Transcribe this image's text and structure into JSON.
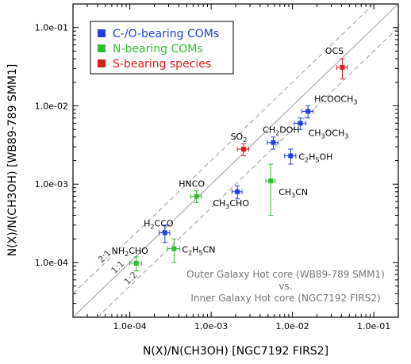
{
  "chart_data": {
    "type": "scatter",
    "title": "",
    "xlabel": "N(X)/N(CH3OH) [NGC7192 FIRS2]",
    "ylabel": "N(X)/N(CH3OH) [WB89-789 SMM1]",
    "xscale": "log",
    "yscale": "log",
    "xlim": [
      2e-05,
      0.2
    ],
    "ylim": [
      2e-05,
      0.2
    ],
    "xticks": [
      "1.0e-04",
      "1.0e-03",
      "1.0e-02",
      "1.0e-01"
    ],
    "yticks": [
      "1.0e-04",
      "1.0e-03",
      "1.0e-02",
      "1.0e-01"
    ],
    "grid": false,
    "legend_position": "top-left",
    "reference_lines": [
      {
        "label": "2:1",
        "ratio": 2,
        "style": "dashed",
        "color": "#aaaaaa"
      },
      {
        "label": "1:1",
        "ratio": 1,
        "style": "solid",
        "color": "#aaaaaa"
      },
      {
        "label": "1:2",
        "ratio": 0.5,
        "style": "dashed",
        "color": "#aaaaaa"
      }
    ],
    "annotation": {
      "line1": "Outer Galaxy Hot core (WB89-789 SMM1)",
      "line2": "vs.",
      "line3": "Inner Galaxy Hot core (NGC7192 FIRS2)"
    },
    "series": [
      {
        "name": "C-/O-bearing COMs",
        "color": "#1f3fe0",
        "points": [
          {
            "label": "H2CCO",
            "x": 0.00027,
            "y": 0.00024,
            "x_err": 4e-05,
            "y_err": 6e-05
          },
          {
            "label": "CH3CHO",
            "x": 0.0021,
            "y": 0.0008,
            "x_err": 0.0003,
            "y_err": 0.00015
          },
          {
            "label": "CH2DOH",
            "x": 0.0058,
            "y": 0.0034,
            "x_err": 0.0009,
            "y_err": 0.0006
          },
          {
            "label": "C2H5OH",
            "x": 0.0095,
            "y": 0.0023,
            "x_err": 0.0015,
            "y_err": 0.0005
          },
          {
            "label": "CH3OCH3",
            "x": 0.0125,
            "y": 0.006,
            "x_err": 0.002,
            "y_err": 0.001
          },
          {
            "label": "HCOOCH3",
            "x": 0.0155,
            "y": 0.0085,
            "x_err": 0.0025,
            "y_err": 0.0015
          }
        ]
      },
      {
        "name": "N-bearing COMs",
        "color": "#33bb33",
        "points": [
          {
            "label": "NH2CHO",
            "x": 0.00012,
            "y": 9.8e-05,
            "x_err": 2e-05,
            "y_err": 2e-05
          },
          {
            "label": "C2H5CN",
            "x": 0.00035,
            "y": 0.00015,
            "x_err": 6e-05,
            "y_err": 5e-05
          },
          {
            "label": "HNCO",
            "x": 0.00066,
            "y": 0.0007,
            "x_err": 0.0001,
            "y_err": 0.00012
          },
          {
            "label": "CH3CN",
            "x": 0.0054,
            "y": 0.0011,
            "x_err": 0.0007,
            "y_err": 0.0007
          }
        ]
      },
      {
        "name": "S-bearing species",
        "color": "#e01b1b",
        "points": [
          {
            "label": "SO2",
            "x": 0.0025,
            "y": 0.0028,
            "x_err": 0.0004,
            "y_err": 0.0005
          },
          {
            "label": "OCS",
            "x": 0.041,
            "y": 0.031,
            "x_err": 0.006,
            "y_err": 0.009
          }
        ]
      }
    ]
  }
}
